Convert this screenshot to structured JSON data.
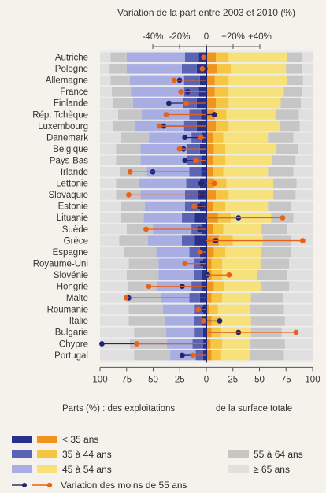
{
  "chart_data": {
    "type": "bar",
    "title": "Variation de la part entre 2003 et 2010 (%)",
    "top_axis": {
      "ticks": [
        "-40%",
        "-20%",
        "0",
        "+20%",
        "+40%"
      ],
      "range": [
        -40,
        40
      ]
    },
    "bottom_axis": {
      "ticks": [
        "100",
        "75",
        "50",
        "25",
        "0",
        "25",
        "50",
        "75",
        "100"
      ],
      "label_left": "Parts (%) : des exploitations",
      "label_right": "de la surface totale"
    },
    "categories": [
      "Autriche",
      "Pologne",
      "Allemagne",
      "France",
      "Finlande",
      "Rép. Tchèque",
      "Luxembourg",
      "Danemark",
      "Belgique",
      "Pays-Bas",
      "Irlande",
      "Lettonie",
      "Slovaquie",
      "Estonie",
      "Lituanie",
      "Suède",
      "Grèce",
      "Espagne",
      "Royaume-Uni",
      "Slovénie",
      "Hongrie",
      "Malte",
      "Roumanie",
      "Italie",
      "Bulgarie",
      "Chypre",
      "Portugal"
    ],
    "farms_share_pct": {
      "lt35": [
        7,
        9,
        6,
        7,
        9,
        5,
        9,
        4,
        6,
        5,
        5,
        6,
        8,
        6,
        11,
        4,
        11,
        6,
        3,
        4,
        5,
        6,
        3,
        4,
        3,
        3,
        3
      ],
      "35to44": [
        13,
        14,
        15,
        14,
        13,
        11,
        12,
        10,
        12,
        13,
        11,
        13,
        12,
        14,
        12,
        10,
        12,
        10,
        9,
        8,
        9,
        10,
        8,
        8,
        8,
        10,
        7
      ],
      "45to54": [
        55,
        52,
        51,
        50,
        47,
        45,
        46,
        40,
        44,
        44,
        40,
        44,
        42,
        38,
        36,
        36,
        32,
        31,
        33,
        33,
        32,
        27,
        30,
        27,
        27,
        24,
        24
      ],
      "55to64": [
        15,
        16,
        18,
        18,
        19,
        22,
        21,
        26,
        23,
        23,
        25,
        22,
        23,
        22,
        21,
        25,
        27,
        30,
        28,
        30,
        28,
        32,
        32,
        34,
        30,
        35,
        34
      ],
      "ge65": [
        10,
        9,
        10,
        11,
        12,
        17,
        12,
        20,
        15,
        15,
        19,
        15,
        15,
        20,
        20,
        25,
        18,
        23,
        27,
        25,
        26,
        25,
        27,
        27,
        32,
        28,
        32
      ]
    },
    "area_share_pct": {
      "lt35": [
        9,
        10,
        8,
        8,
        9,
        8,
        9,
        6,
        7,
        6,
        6,
        7,
        9,
        6,
        11,
        6,
        12,
        7,
        5,
        5,
        7,
        5,
        3,
        5,
        5,
        4,
        5
      ],
      "35to44": [
        12,
        13,
        13,
        13,
        12,
        11,
        12,
        10,
        11,
        12,
        10,
        12,
        12,
        12,
        12,
        10,
        13,
        11,
        10,
        10,
        10,
        10,
        8,
        9,
        9,
        11,
        9
      ],
      "45to54": [
        55,
        52,
        55,
        52,
        49,
        46,
        48,
        42,
        48,
        44,
        42,
        44,
        42,
        40,
        38,
        36,
        28,
        34,
        36,
        33,
        34,
        27,
        30,
        28,
        28,
        26,
        27
      ],
      "55to64": [
        14,
        15,
        15,
        17,
        19,
        22,
        19,
        24,
        20,
        22,
        24,
        22,
        21,
        22,
        21,
        24,
        27,
        28,
        27,
        28,
        27,
        30,
        32,
        32,
        29,
        33,
        32
      ],
      "ge65": [
        10,
        10,
        9,
        10,
        11,
        13,
        12,
        18,
        14,
        16,
        18,
        15,
        16,
        20,
        18,
        24,
        20,
        20,
        22,
        24,
        22,
        28,
        27,
        26,
        29,
        26,
        27
      ]
    },
    "series": [
      {
        "name": "Variation des moins de 55 ans (exploitations)",
        "color": "#1f2570",
        "values": [
          -2,
          -1,
          -20,
          -14,
          -28,
          6,
          -32,
          -16,
          -17,
          -16,
          -40,
          -4,
          -3,
          -5,
          24,
          -5,
          7,
          -5,
          -3,
          1,
          -18,
          -58,
          -2,
          10,
          24,
          -78,
          -18
        ]
      },
      {
        "name": "Variation des moins de 55 ans (surface)",
        "color": "#e8631a",
        "values": [
          -2,
          -3,
          -24,
          -19,
          -15,
          -30,
          -35,
          -4,
          -20,
          -8,
          -57,
          6,
          -58,
          -9,
          57,
          -45,
          72,
          -5,
          -16,
          17,
          -43,
          -60,
          -6,
          -2,
          67,
          -52,
          -10
        ]
      }
    ],
    "legend": {
      "lt35": "< 35 ans",
      "35to44": "35 à 44 ans",
      "45to54": "45 à 54 ans",
      "55to64": "55 à 64 ans",
      "ge65": "≥ 65 ans",
      "variation": "Variation des moins de 55 ans"
    },
    "colors": {
      "farms": [
        "#27308a",
        "#5b63b5",
        "#a9aee2"
      ],
      "area": [
        "#f0941f",
        "#f7c640",
        "#f6e17a"
      ],
      "grey": [
        "#c6c6c6",
        "#e0e0e0"
      ],
      "dark_line": "#1f2570",
      "orange_line": "#e8631a"
    }
  }
}
